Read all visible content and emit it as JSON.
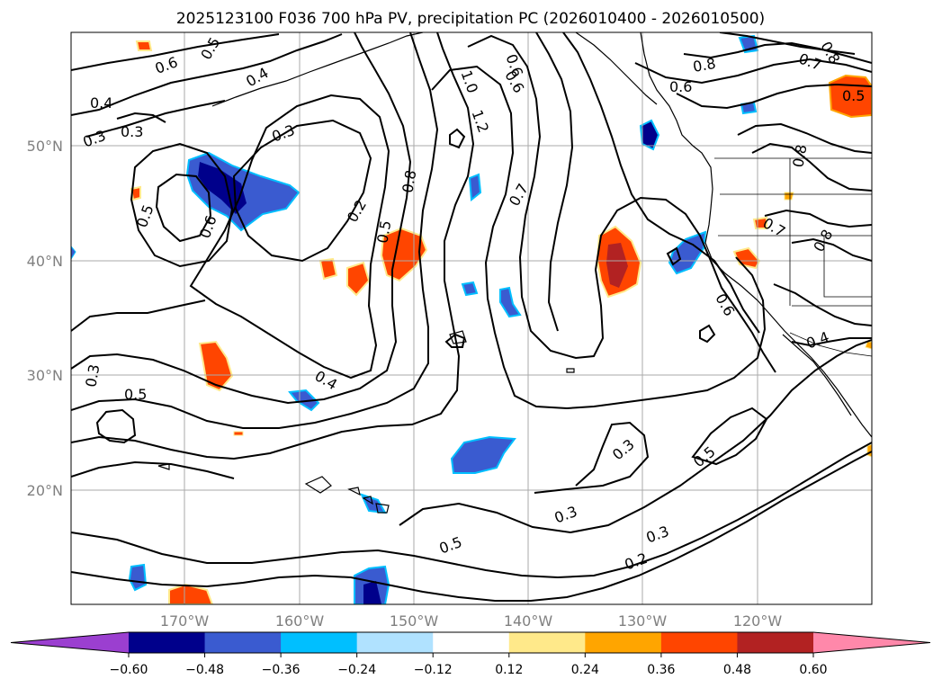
{
  "title": "2025123100 F036 700 hPa PV, precipitation PC (2026010400 - 2026010500)",
  "lat_labels": [
    "50°N",
    "40°N",
    "30°N",
    "20°N"
  ],
  "lon_labels": [
    "170°W",
    "160°W",
    "150°W",
    "140°W",
    "130°W",
    "120°W"
  ],
  "colorbar": {
    "ticks": [
      "−0.60",
      "−0.48",
      "−0.36",
      "−0.24",
      "−0.12",
      "0.12",
      "0.24",
      "0.36",
      "0.48",
      "0.60"
    ],
    "under_color": "#9b3fd0",
    "colors": [
      "#00008b",
      "#3a5bd0",
      "#00bfff",
      "#b0e2ff",
      "#ffffff",
      "#ffe98a",
      "#ffa500",
      "#ff4500",
      "#b22222"
    ],
    "over_color": "#ff88aa"
  },
  "contour_labels": [
    "0.6",
    "0.5",
    "0.4",
    "0.8",
    "0.6",
    "1.0",
    "1.2",
    "0.6",
    "0.7",
    "0.8",
    "0.6",
    "0.5",
    "0.4",
    "0.3",
    "0.3",
    "0.3",
    "0.5",
    "0.6",
    "0.2",
    "0.8",
    "0.5",
    "0.7",
    "0.8",
    "0.8",
    "0.7",
    "0.6",
    "0.4",
    "0.3",
    "0.5",
    "0.4",
    "0.3",
    "0.5",
    "0.3",
    "0.3",
    "0.5",
    "0.2"
  ]
}
